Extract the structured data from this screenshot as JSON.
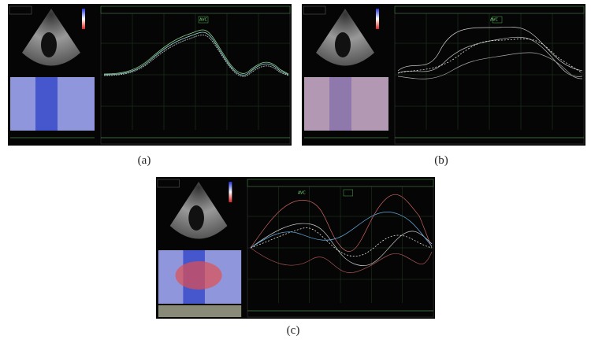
{
  "figure": {
    "panels": [
      {
        "caption": "(a)",
        "marker": "AVC"
      },
      {
        "caption": "(b)",
        "marker": "AVC"
      },
      {
        "caption": "(c)",
        "marker": "AVC"
      }
    ]
  }
}
